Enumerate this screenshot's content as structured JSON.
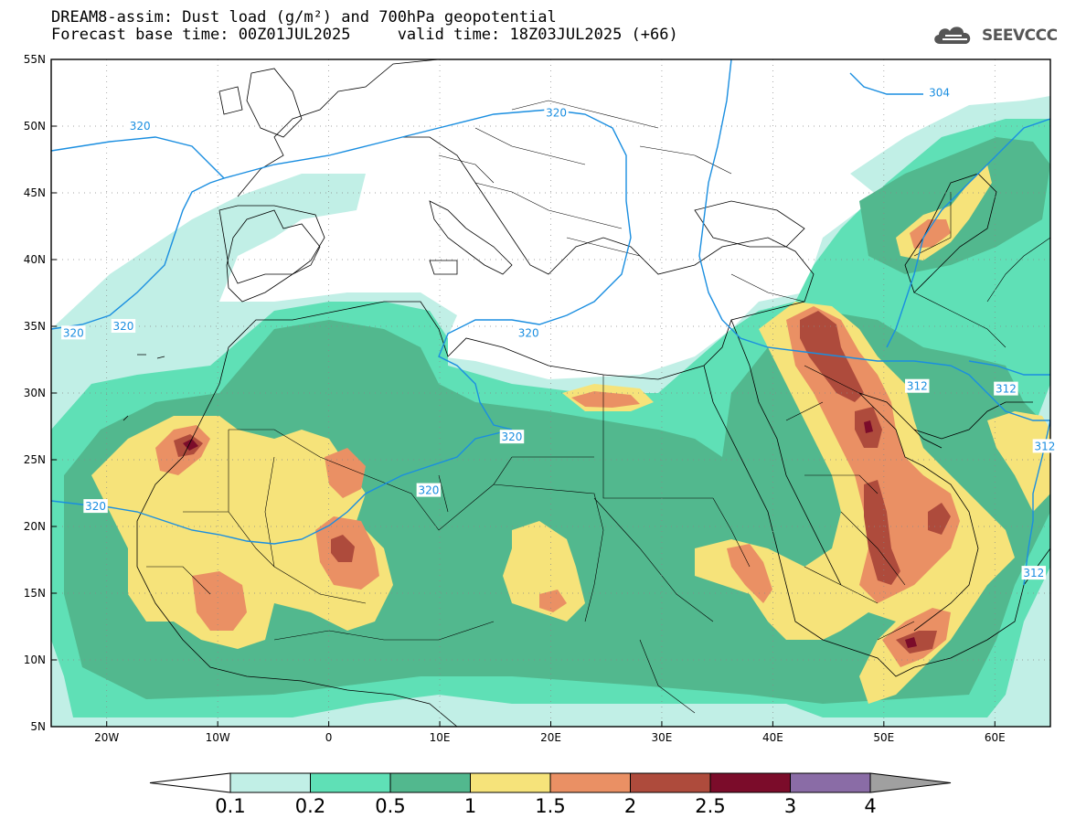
{
  "header": {
    "line1": "DREAM8-assim: Dust load (g/m²) and 700hPa geopotential",
    "line2": "Forecast base time: 00Z01JUL2025     valid time: 18Z03JUL2025 (+66)"
  },
  "logo": {
    "text": "SEEVCCC",
    "icon": "cloud-logo-icon"
  },
  "map": {
    "lon_range": [
      -25,
      65
    ],
    "lat_range": [
      5,
      55
    ],
    "lat_ticks": [
      "5N",
      "10N",
      "15N",
      "20N",
      "25N",
      "30N",
      "35N",
      "40N",
      "45N",
      "50N",
      "55N"
    ],
    "lon_ticks": [
      "20W",
      "10W",
      "0",
      "10E",
      "20E",
      "30E",
      "40E",
      "50E",
      "60E"
    ],
    "contour_labels": [
      {
        "text": "320",
        "lon": -17,
        "lat": 50
      },
      {
        "text": "320",
        "lon": 20.5,
        "lat": 51
      },
      {
        "text": "304",
        "lon": 55,
        "lat": 52.5
      },
      {
        "text": "320",
        "lon": -23,
        "lat": 34.5
      },
      {
        "text": "320",
        "lon": -18.5,
        "lat": 35
      },
      {
        "text": "320",
        "lon": 18,
        "lat": 34.5
      },
      {
        "text": "312",
        "lon": 53,
        "lat": 30.5
      },
      {
        "text": "312",
        "lon": 61,
        "lat": 30.3
      },
      {
        "text": "320",
        "lon": 16.5,
        "lat": 26.7
      },
      {
        "text": "312",
        "lon": 64.5,
        "lat": 26
      },
      {
        "text": "320",
        "lon": 9,
        "lat": 22.7
      },
      {
        "text": "320",
        "lon": -21,
        "lat": 21.5
      },
      {
        "text": "312",
        "lon": 63.5,
        "lat": 16.5
      }
    ]
  },
  "legend": {
    "levels": [
      "0.1",
      "0.2",
      "0.5",
      "1",
      "1.5",
      "2",
      "2.5",
      "3",
      "4"
    ],
    "colors": [
      "#c1efe6",
      "#5fe0b6",
      "#52b88e",
      "#f6e37a",
      "#ea9064",
      "#ae4b3c",
      "#7b0c2a",
      "#8a6ca6"
    ],
    "under_color": "#ffffff",
    "over_color": "#a0a0a0"
  },
  "colors": {
    "contour": "#1a8ee0",
    "very_low": "#c1efe6",
    "low": "#5fe0b6",
    "mid": "#52b88e",
    "one": "#f6e37a",
    "onehalf": "#ea9064",
    "two": "#ae4b3c",
    "twohalf": "#7b0c2a"
  }
}
